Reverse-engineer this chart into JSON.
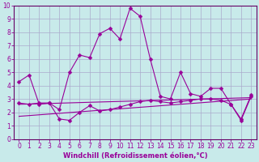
{
  "xlabel": "Windchill (Refroidissement éolien,°C)",
  "background_color": "#c8eaea",
  "grid_color": "#aaaacc",
  "line_color": "#990099",
  "spine_color": "#660066",
  "xlim": [
    -0.5,
    23.5
  ],
  "ylim": [
    0,
    10
  ],
  "xticks": [
    0,
    1,
    2,
    3,
    4,
    5,
    6,
    7,
    8,
    9,
    10,
    11,
    12,
    13,
    14,
    15,
    16,
    17,
    18,
    19,
    20,
    21,
    22,
    23
  ],
  "yticks": [
    0,
    1,
    2,
    3,
    4,
    5,
    6,
    7,
    8,
    9,
    10
  ],
  "series1_x": [
    0,
    1,
    2,
    3,
    4,
    5,
    6,
    7,
    8,
    9,
    10,
    11,
    12,
    13,
    14,
    15,
    16,
    17,
    18,
    19,
    20,
    21,
    22,
    23
  ],
  "series1_y": [
    4.3,
    4.8,
    2.6,
    2.7,
    2.2,
    5.0,
    6.3,
    6.1,
    7.9,
    8.3,
    7.5,
    9.8,
    9.2,
    6.0,
    3.2,
    3.0,
    5.0,
    3.4,
    3.2,
    3.8,
    3.8,
    2.6,
    1.5,
    3.3
  ],
  "series2_x": [
    0,
    1,
    2,
    3,
    4,
    5,
    6,
    7,
    8,
    9,
    10,
    11,
    12,
    13,
    14,
    15,
    16,
    17,
    18,
    19,
    20,
    21,
    22,
    23
  ],
  "series2_y": [
    2.7,
    2.6,
    2.7,
    2.7,
    1.5,
    1.4,
    2.0,
    2.5,
    2.1,
    2.2,
    2.4,
    2.6,
    2.8,
    2.9,
    2.8,
    2.7,
    2.8,
    2.9,
    3.0,
    3.0,
    2.9,
    2.6,
    1.4,
    3.2
  ],
  "series3_x": [
    0,
    23
  ],
  "series3_y": [
    2.6,
    3.1
  ],
  "series4_x": [
    0,
    23
  ],
  "series4_y": [
    1.7,
    3.0
  ],
  "markersize": 2.5,
  "linewidth": 0.8,
  "tick_fontsize": 5.5,
  "xlabel_fontsize": 6.0
}
